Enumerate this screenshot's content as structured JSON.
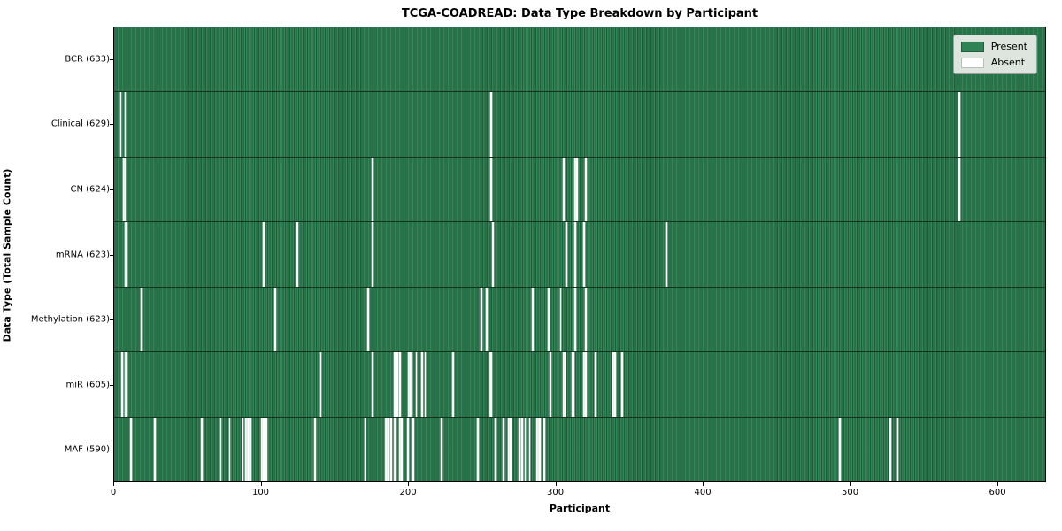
{
  "chart_data": {
    "type": "heatmap",
    "title": "TCGA-COADREAD: Data Type Breakdown by Participant",
    "xlabel": "Participant",
    "ylabel": "Data Type (Total Sample Count)",
    "x_range": [
      0,
      633
    ],
    "x_ticks": [
      0,
      100,
      200,
      300,
      400,
      500,
      600
    ],
    "n_participants": 633,
    "grid": false,
    "legend_position": "upper right",
    "colors": {
      "present_fill": "#2f8355",
      "present_edge": "#215c3b",
      "absent_fill": "#ffffff",
      "legend_bg": "#dde5de",
      "plot_border": "#000000"
    },
    "legend": [
      {
        "label": "Present",
        "color": "#2f8355"
      },
      {
        "label": "Absent",
        "color": "#ffffff"
      }
    ],
    "rows": [
      {
        "label": "BCR (633)",
        "data_type": "BCR",
        "present_count": 633,
        "absent_count": 0,
        "absent_participants": []
      },
      {
        "label": "Clinical (629)",
        "data_type": "Clinical",
        "present_count": 629,
        "absent_count": 4,
        "absent_participants": [
          4,
          7,
          256,
          574
        ]
      },
      {
        "label": "CN (624)",
        "data_type": "CN",
        "present_count": 624,
        "absent_count": 9,
        "absent_participants": [
          6,
          7,
          175,
          256,
          305,
          313,
          314,
          320,
          574
        ]
      },
      {
        "label": "mRNA (623)",
        "data_type": "mRNA",
        "present_count": 623,
        "absent_count": 10,
        "absent_participants": [
          7,
          8,
          101,
          124,
          175,
          257,
          307,
          313,
          319,
          375
        ]
      },
      {
        "label": "Methylation (623)",
        "data_type": "Methylation",
        "present_count": 623,
        "absent_count": 10,
        "absent_participants": [
          18,
          109,
          172,
          249,
          253,
          284,
          295,
          303,
          313,
          320
        ]
      },
      {
        "label": "miR (605)",
        "data_type": "miR",
        "present_count": 605,
        "absent_count": 28,
        "absent_participants": [
          5,
          7,
          8,
          140,
          175,
          190,
          192,
          194,
          200,
          201,
          202,
          205,
          209,
          211,
          230,
          255,
          256,
          296,
          305,
          306,
          311,
          312,
          319,
          320,
          327,
          339,
          340,
          345
        ]
      },
      {
        "label": "MAF (590)",
        "data_type": "MAF",
        "present_count": 590,
        "absent_count": 43,
        "absent_participants": [
          11,
          27,
          59,
          72,
          78,
          87,
          89,
          90,
          91,
          92,
          100,
          101,
          103,
          136,
          170,
          184,
          185,
          186,
          188,
          190,
          191,
          194,
          195,
          199,
          202,
          203,
          222,
          247,
          259,
          264,
          268,
          269,
          275,
          277,
          279,
          282,
          287,
          288,
          289,
          292,
          493,
          527,
          532
        ]
      }
    ]
  }
}
